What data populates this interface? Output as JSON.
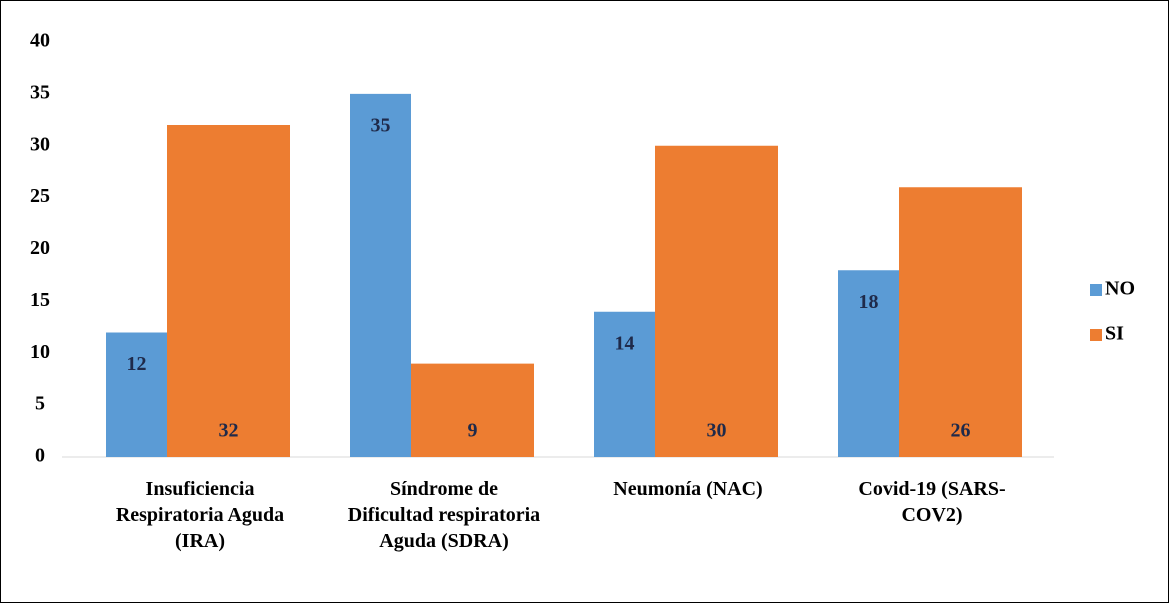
{
  "chart_data": {
    "type": "bar",
    "categories": [
      "Insuficiencia Respiratoria Aguda (IRA)",
      "Síndrome de Dificultad respiratoria Aguda (SDRA)",
      "Neumonía (NAC)",
      "Covid-19 (SARS-COV2)"
    ],
    "series": [
      {
        "name": "NO",
        "color": "#5b9bd5",
        "values": [
          12,
          35,
          14,
          18
        ]
      },
      {
        "name": "SI",
        "color": "#ed7d31",
        "values": [
          32,
          9,
          30,
          26
        ]
      }
    ],
    "ylim": [
      0,
      40
    ],
    "yticks": [
      0,
      5,
      10,
      15,
      20,
      25,
      30,
      35,
      40
    ],
    "grid": false,
    "legend": "right"
  }
}
